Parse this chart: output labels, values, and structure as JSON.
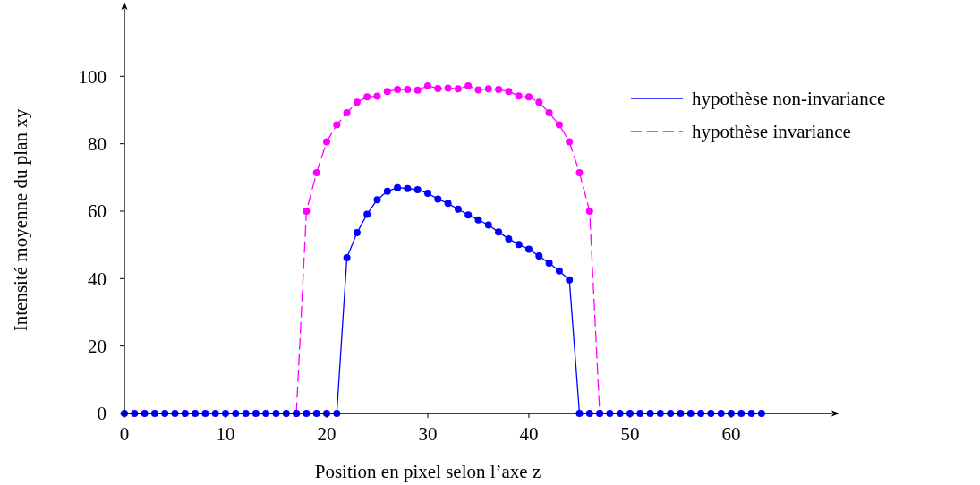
{
  "chart_data": {
    "type": "line",
    "xlabel": "Position en pixel selon l’axe z",
    "ylabel": "Intensité moyenne du plan xy",
    "x": [
      0,
      1,
      2,
      3,
      4,
      5,
      6,
      7,
      8,
      9,
      10,
      11,
      12,
      13,
      14,
      15,
      16,
      17,
      18,
      19,
      20,
      21,
      22,
      23,
      24,
      25,
      26,
      27,
      28,
      29,
      30,
      31,
      32,
      33,
      34,
      35,
      36,
      37,
      38,
      39,
      40,
      41,
      42,
      43,
      44,
      45,
      46,
      47,
      48,
      49,
      50,
      51,
      52,
      53,
      54,
      55,
      56,
      57,
      58,
      59,
      60,
      61,
      62,
      63
    ],
    "series": [
      {
        "name": "hypothèse invariance",
        "color": "#ff00ff",
        "line_style": "dashed",
        "values": [
          null,
          null,
          null,
          null,
          null,
          null,
          null,
          null,
          null,
          null,
          null,
          null,
          null,
          null,
          null,
          null,
          null,
          0,
          60,
          71.4,
          80.6,
          85.6,
          89.2,
          92.3,
          93.9,
          94.1,
          95.5,
          96.1,
          96.1,
          95.9,
          97.2,
          96.4,
          96.5,
          96.3,
          97.2,
          96,
          96.3,
          96.1,
          95.5,
          94.2,
          93.9,
          92.3,
          89.2,
          85.6,
          80.6,
          71.4,
          60,
          0,
          null,
          null,
          null,
          null,
          null,
          null,
          null,
          null,
          null,
          null,
          null,
          null,
          null,
          null,
          null,
          null
        ]
      },
      {
        "name": "hypothèse non-invariance",
        "color": "#0000ff",
        "line_style": "solid",
        "values": [
          0,
          0,
          0,
          0,
          0,
          0,
          0,
          0,
          0,
          0,
          0,
          0,
          0,
          0,
          0,
          0,
          0,
          0,
          0,
          0,
          0,
          0,
          46.2,
          53.6,
          59.1,
          63.4,
          65.9,
          67,
          66.7,
          66.4,
          65.3,
          63.6,
          62.3,
          60.6,
          58.9,
          57.4,
          55.9,
          53.8,
          51.8,
          50.1,
          48.7,
          46.7,
          44.6,
          42.3,
          39.6,
          0,
          0,
          0,
          0,
          0,
          0,
          0,
          0,
          0,
          0,
          0,
          0,
          0,
          0,
          0,
          0,
          0,
          0,
          0
        ]
      }
    ],
    "xlim": [
      0,
      70
    ],
    "ylim": [
      0,
      120
    ],
    "xticks": [
      0,
      10,
      20,
      30,
      40,
      50,
      60
    ],
    "yticks": [
      0,
      20,
      40,
      60,
      80,
      100
    ],
    "marker": "circle",
    "legend": "top right",
    "grid": false
  }
}
